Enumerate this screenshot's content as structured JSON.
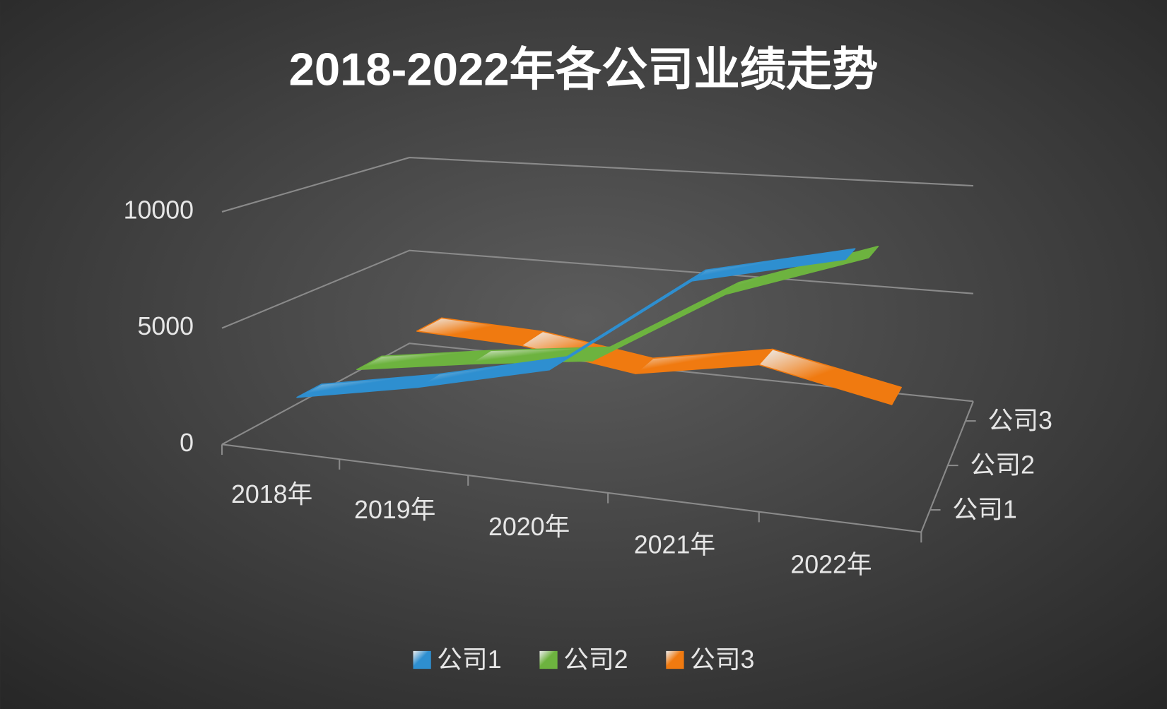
{
  "chart_data": {
    "type": "line",
    "title": "2018-2022年各公司业绩走势",
    "categories": [
      "2018年",
      "2019年",
      "2020年",
      "2021年",
      "2022年"
    ],
    "series": [
      {
        "name": "公司1",
        "color": "#2e8fd0",
        "values": [
          1900,
          2900,
          4200,
          8300,
          9600
        ]
      },
      {
        "name": "公司2",
        "color": "#6db33f",
        "values": [
          1700,
          2500,
          3200,
          6600,
          8600
        ]
      },
      {
        "name": "公司3",
        "color": "#f07a10",
        "values": [
          2000,
          1800,
          1000,
          2000,
          800
        ]
      }
    ],
    "ylim": [
      0,
      10000
    ],
    "yticks": [
      0,
      5000,
      10000
    ],
    "grid": true,
    "legend": "bottom"
  }
}
